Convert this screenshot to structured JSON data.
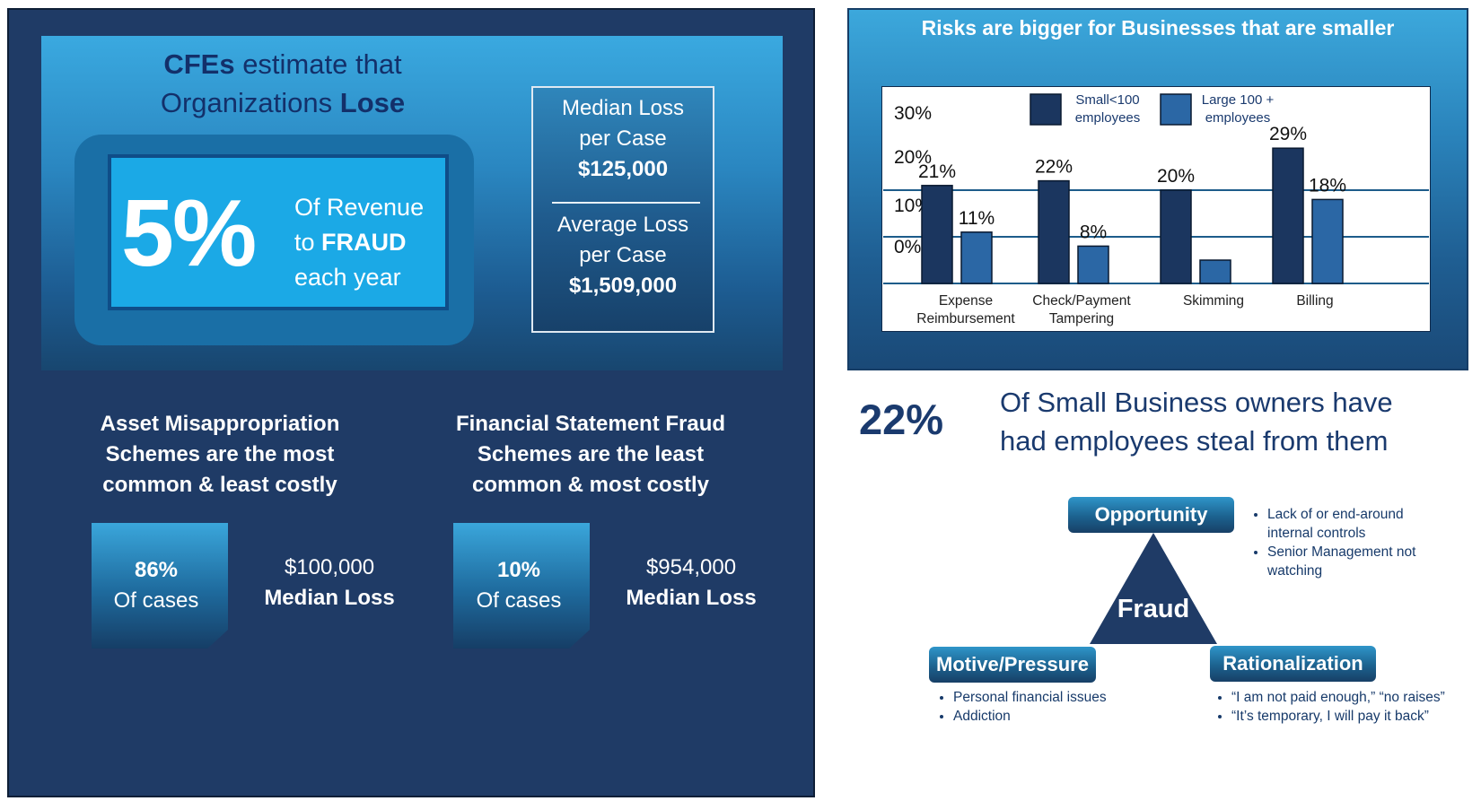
{
  "left": {
    "title_line1_bold": "CFEs",
    "title_line1_rest": " estimate that",
    "title_line2_rest": "Organizations ",
    "title_line2_bold": "Lose",
    "big_percent": "5%",
    "revenue_line1": "Of Revenue",
    "revenue_line2_pre": "to ",
    "revenue_line2_bold": "FRAUD",
    "revenue_line3": "each year",
    "median_line1": "Median Loss",
    "median_line2": "per Case",
    "median_value": "$125,000",
    "average_line1": "Average Loss",
    "average_line2": "per Case",
    "average_value": "$1,509,000",
    "asset_heading": [
      "Asset Misappropriation",
      "Schemes are the most",
      "common & least costly"
    ],
    "fsf_heading": [
      "Financial Statement Fraud",
      "Schemes are the least",
      "common & most costly"
    ],
    "asset_card_pct": "86%",
    "asset_card_label": "Of cases",
    "asset_median_value": "$100,000",
    "asset_median_label": "Median Loss",
    "fsf_card_pct": "10%",
    "fsf_card_label": "Of cases",
    "fsf_median_value": "$954,000",
    "fsf_median_label": "Median Loss"
  },
  "right": {
    "stat_pct": "22%",
    "stat_line1": "Of Small Business owners have",
    "stat_line2": "had employees steal from them",
    "triangle_center": "Fraud",
    "opportunity_label": "Opportunity",
    "opportunity_bullets": [
      "Lack of or end-around",
      "internal controls",
      "Senior Management not",
      "watching"
    ],
    "motive_label": "Motive/Pressure",
    "motive_bullets": [
      "Personal financial issues",
      "Addiction"
    ],
    "rationalization_label": "Rationalization",
    "rationalization_bullets": [
      "“I am not paid enough,” “no raises”",
      "“It’s temporary, I will pay it back”"
    ]
  },
  "colors": {
    "dark_navy": "#1f3b66",
    "text_navy": "#1a3a6e",
    "bright_blue": "#1ba9e6",
    "series_small": "#1b365f",
    "series_large": "#2b67a5"
  },
  "chart_data": {
    "type": "bar",
    "title": "Risks are bigger for Businesses that are smaller",
    "categories": [
      [
        "Expense",
        "Reimbursement"
      ],
      [
        "Check/Payment",
        "Tampering"
      ],
      [
        "Skimming"
      ],
      [
        "Billing"
      ]
    ],
    "series": [
      {
        "name": [
          "Small<100",
          "employees"
        ],
        "values": [
          21,
          22,
          20,
          29
        ],
        "labels": [
          "21%",
          "22%",
          "20%",
          "29%"
        ]
      },
      {
        "name": [
          "Large 100 +",
          "employees"
        ],
        "values": [
          11,
          8,
          5,
          18
        ],
        "labels": [
          "11%",
          "8%",
          "",
          "18%"
        ]
      }
    ],
    "y_ticks": [
      "30%",
      "20%",
      "10%",
      "0%"
    ],
    "legend": "top",
    "grid": true
  }
}
